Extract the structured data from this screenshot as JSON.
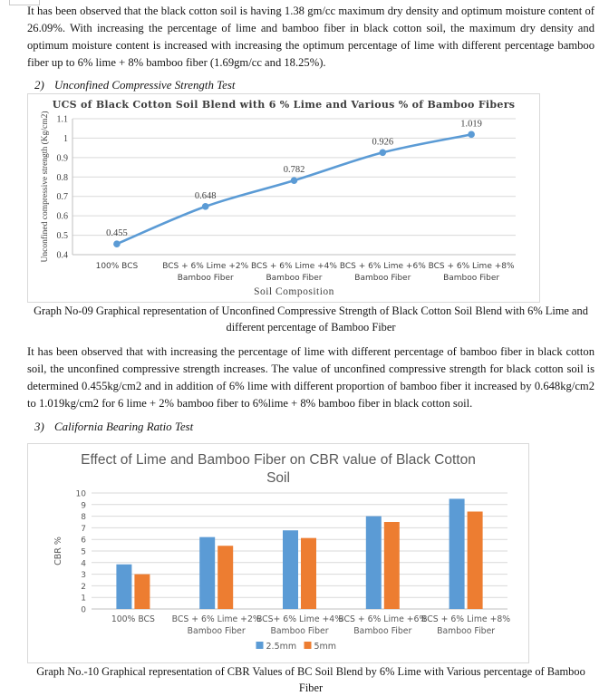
{
  "page": {
    "paragraph1": "It has been observed that the black cotton soil is having 1.38 gm/cc maximum dry density and optimum moisture content of 26.09%. With increasing the percentage of lime and bamboo fiber in black cotton soil, the maximum dry density and optimum moisture content is increased with increasing the optimum percentage of lime with different percentage bamboo fiber up to 6% lime + 8% bamboo fiber (1.69gm/cc and 18.25%).",
    "section2": {
      "number": "2)",
      "title": "Unconfined Compressive Strength Test"
    },
    "caption1": "Graph No-09 Graphical representation of Unconfined Compressive Strength of Black Cotton Soil Blend with 6% Lime and different percentage of Bamboo Fiber",
    "paragraph2": "It has been observed that with increasing the percentage of lime with different percentage of bamboo fiber in black cotton soil, the unconfined compressive strength increases. The value of unconfined compressive strength for black cotton soil is determined 0.455kg/cm2 and in addition of 6% lime with different proportion of bamboo fiber it increased by 0.648kg/cm2 to 1.019kg/cm2 for 6 lime + 2% bamboo fiber to 6%lime + 8% bamboo fiber in black cotton soil.",
    "section3": {
      "number": "3)",
      "title": "California Bearing Ratio Test"
    },
    "caption2": "Graph No.-10 Graphical representation of CBR Values of BC Soil Blend by 6% Lime with Various percentage of Bamboo Fiber"
  },
  "colors": {
    "series_blue": "#5B9BD5",
    "series_orange": "#ED7D31",
    "gridline": "#D9D9D9",
    "axis_line": "#BFBFBF",
    "chart1_text": "#3f3f3f",
    "chart2_text": "#595959"
  },
  "chart_data": [
    {
      "type": "line",
      "title": "UCS of Black Cotton Soil Blend with 6 % Lime and Various % of Bamboo Fibers",
      "xlabel": "Soil Composition",
      "ylabel": "Unconfined compressive strength (Kg/cm2)",
      "categories": [
        [
          "100% BCS"
        ],
        [
          "BCS + 6% Lime +2%",
          "Bamboo Fiber"
        ],
        [
          "BCS + 6% Lime +4%",
          "Bamboo Fiber"
        ],
        [
          "BCS + 6% Lime +6%",
          "Bamboo Fiber"
        ],
        [
          "BCS + 6% Lime +8%",
          "Bamboo Fiber"
        ]
      ],
      "values": [
        0.455,
        0.648,
        0.782,
        0.926,
        1.019
      ],
      "data_labels": [
        "0.455",
        "0.648",
        "0.782",
        "0.926",
        "1.019"
      ],
      "ylim": [
        0.4,
        1.1
      ],
      "yticks": [
        1.1,
        1,
        0.9,
        0.8,
        0.7,
        0.6,
        0.5,
        0.4
      ],
      "grid": true,
      "legend": "none",
      "line_color": "#5B9BD5"
    },
    {
      "type": "bar",
      "title": "Effect of Lime and Bamboo Fiber on CBR value of Black Cotton Soil",
      "ylabel": "CBR %",
      "categories": [
        [
          "100% BCS"
        ],
        [
          "BCS + 6% Lime +2%",
          "Bamboo Fiber"
        ],
        [
          "BCS+ 6% Lime +4%",
          "Bamboo Fiber"
        ],
        [
          "BCS + 6% Lime +6%",
          "Bamboo Fiber"
        ],
        [
          "BCS + 6% Lime +8%",
          "Bamboo Fiber"
        ]
      ],
      "series": [
        {
          "name": "2.5mm",
          "color": "#5B9BD5",
          "values": [
            3.85,
            6.2,
            6.78,
            8.0,
            9.5
          ]
        },
        {
          "name": "5mm",
          "color": "#ED7D31",
          "values": [
            3.0,
            5.45,
            6.12,
            7.5,
            8.4
          ]
        }
      ],
      "ylim": [
        0,
        10
      ],
      "yticks": [
        10,
        9,
        8,
        7,
        6,
        5,
        4,
        3,
        2,
        1,
        0
      ],
      "grid": true,
      "legend_position": "bottom"
    }
  ]
}
